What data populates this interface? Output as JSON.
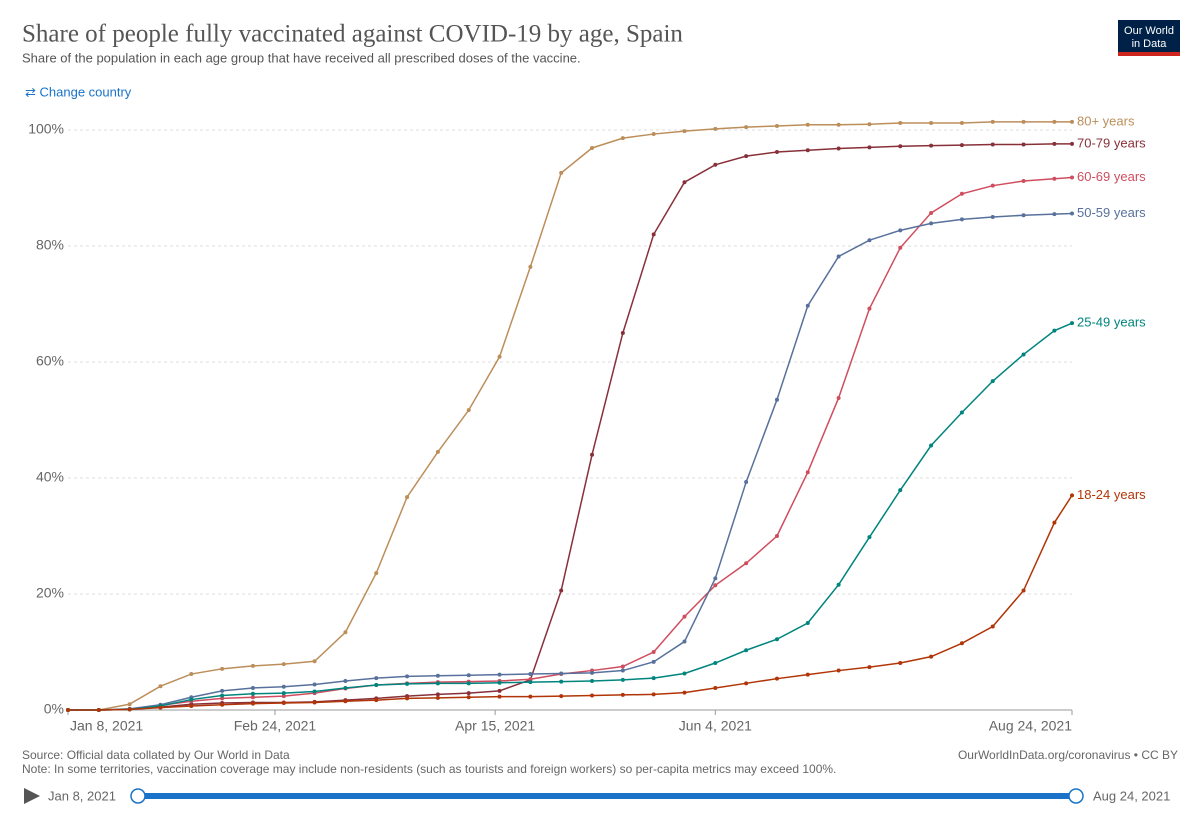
{
  "chart_data": {
    "type": "line",
    "title": "Share of people fully vaccinated against COVID-19 by age, Spain",
    "subtitle": "Share of the population in each age group that have received all prescribed doses of the vaccine.",
    "change_country": "⇄ Change country",
    "logo": [
      "Our World",
      "in Data"
    ],
    "source": "Source: Official data collated by Our World in Data",
    "note": "Note: In some territories, vaccination coverage may include non-residents (such as tourists and foreign workers) so per-capita metrics may exceed 100%.",
    "credit": "OurWorldInData.org/coronavirus • CC BY",
    "timeline": {
      "start": "Jan 8, 2021",
      "end": "Aug 24, 2021"
    },
    "x": [
      "2021-01-08",
      "2021-01-15",
      "2021-01-22",
      "2021-01-29",
      "2021-02-05",
      "2021-02-12",
      "2021-02-19",
      "2021-02-26",
      "2021-03-05",
      "2021-03-12",
      "2021-03-19",
      "2021-03-26",
      "2021-04-02",
      "2021-04-09",
      "2021-04-16",
      "2021-04-23",
      "2021-04-30",
      "2021-05-07",
      "2021-05-14",
      "2021-05-21",
      "2021-05-28",
      "2021-06-04",
      "2021-06-11",
      "2021-06-18",
      "2021-06-25",
      "2021-07-02",
      "2021-07-09",
      "2021-07-16",
      "2021-07-23",
      "2021-07-30",
      "2021-08-06",
      "2021-08-13",
      "2021-08-20",
      "2021-08-24"
    ],
    "xlim": [
      "2021-01-08",
      "2021-08-24"
    ],
    "xticks": [
      {
        "value": "2021-01-08",
        "label": "Jan 8, 2021"
      },
      {
        "value": "2021-02-24",
        "label": "Feb 24, 2021"
      },
      {
        "value": "2021-04-15",
        "label": "Apr 15, 2021"
      },
      {
        "value": "2021-06-04",
        "label": "Jun 4, 2021"
      },
      {
        "value": "2021-08-24",
        "label": "Aug 24, 2021"
      }
    ],
    "ylim": [
      0,
      100
    ],
    "yticks": [
      {
        "value": 0,
        "label": "0%"
      },
      {
        "value": 20,
        "label": "20%"
      },
      {
        "value": 40,
        "label": "40%"
      },
      {
        "value": 60,
        "label": "60%"
      },
      {
        "value": 80,
        "label": "80%"
      },
      {
        "value": 100,
        "label": "100%"
      }
    ],
    "grid": true,
    "series": [
      {
        "name": "80+ years",
        "color": "#BC8E5A",
        "values": [
          0,
          0,
          1.0,
          4.1,
          6.2,
          7.1,
          7.6,
          7.9,
          8.4,
          13.4,
          23.6,
          36.7,
          44.5,
          51.7,
          60.9,
          76.4,
          92.6,
          96.9,
          98.6,
          99.3,
          99.8,
          100.2,
          100.5,
          100.7,
          100.9,
          100.9,
          101.0,
          101.2,
          101.2,
          101.2,
          101.4,
          101.4,
          101.4,
          101.4
        ]
      },
      {
        "name": "70-79 years",
        "color": "#883039",
        "values": [
          0,
          0,
          0.1,
          0.5,
          1.0,
          1.2,
          1.3,
          1.3,
          1.4,
          1.7,
          2.0,
          2.4,
          2.7,
          2.9,
          3.3,
          5.2,
          20.6,
          44,
          65,
          82,
          91,
          94,
          95.5,
          96.2,
          96.5,
          96.8,
          97,
          97.2,
          97.3,
          97.4,
          97.5,
          97.5,
          97.6,
          97.6
        ]
      },
      {
        "name": "60-69 years",
        "color": "#CF4D5F",
        "values": [
          0,
          0,
          0.1,
          0.8,
          1.5,
          2.0,
          2.2,
          2.4,
          2.9,
          3.7,
          4.3,
          4.6,
          4.8,
          4.9,
          5.0,
          5.3,
          6.2,
          6.8,
          7.5,
          10.0,
          16.1,
          21.5,
          25.3,
          30.0,
          41.0,
          53.8,
          69.2,
          79.7,
          85.7,
          89.0,
          90.4,
          91.2,
          91.6,
          91.8
        ]
      },
      {
        "name": "50-59 years",
        "color": "#58719C",
        "values": [
          0,
          0,
          0.2,
          0.9,
          2.2,
          3.3,
          3.8,
          4.0,
          4.4,
          5.0,
          5.5,
          5.8,
          5.9,
          6.0,
          6.1,
          6.2,
          6.3,
          6.4,
          6.8,
          8.3,
          11.8,
          22.7,
          39.3,
          53.5,
          69.7,
          78.2,
          81.0,
          82.7,
          83.9,
          84.6,
          85.0,
          85.3,
          85.5,
          85.6
        ]
      },
      {
        "name": "25-49 years",
        "color": "#00847E",
        "values": [
          0,
          0,
          0.1,
          0.7,
          1.8,
          2.5,
          2.8,
          2.9,
          3.2,
          3.8,
          4.3,
          4.5,
          4.6,
          4.6,
          4.7,
          4.8,
          4.9,
          5.0,
          5.2,
          5.5,
          6.3,
          8.1,
          10.3,
          12.2,
          15.0,
          21.6,
          29.8,
          37.9,
          45.6,
          51.3,
          56.7,
          61.3,
          65.4,
          66.7
        ]
      },
      {
        "name": "18-24 years",
        "color": "#B13507",
        "values": [
          0,
          0,
          0.1,
          0.4,
          0.7,
          0.9,
          1.1,
          1.2,
          1.3,
          1.5,
          1.7,
          2.0,
          2.1,
          2.2,
          2.3,
          2.3,
          2.4,
          2.5,
          2.6,
          2.7,
          3.0,
          3.8,
          4.6,
          5.4,
          6.1,
          6.8,
          7.4,
          8.1,
          9.2,
          11.5,
          14.4,
          20.6,
          32.3,
          37.0
        ]
      }
    ]
  }
}
